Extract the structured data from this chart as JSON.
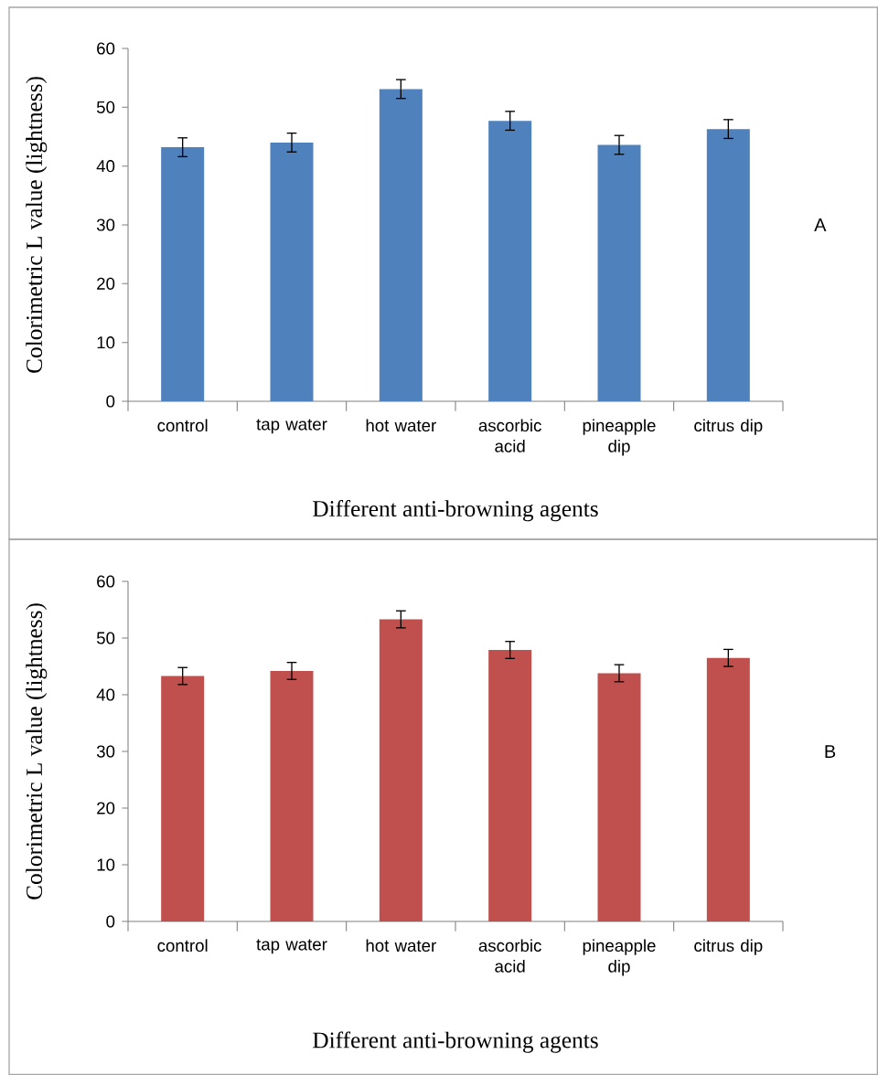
{
  "chart_data": [
    {
      "type": "bar",
      "categories": [
        "control",
        "tap water",
        "hot water",
        "ascorbic acid",
        "pineapple dip",
        "citrus dip"
      ],
      "values": [
        43.2,
        44.0,
        53.1,
        47.7,
        43.6,
        46.3
      ],
      "errors": [
        1.6,
        1.6,
        1.6,
        1.6,
        1.6,
        1.6
      ],
      "color": "#4f81bd",
      "ylim": [
        0,
        60
      ],
      "yticks": [
        0,
        10,
        20,
        30,
        40,
        50,
        60
      ],
      "xlabel": "Different anti-browning agents",
      "ylabel": "Colorimetric L value (lightness)",
      "annotations": [
        "A"
      ]
    },
    {
      "type": "bar",
      "categories": [
        "control",
        "tap water",
        "hot water",
        "ascorbic acid",
        "pineapple dip",
        "citrus dip"
      ],
      "values": [
        43.3,
        44.2,
        53.3,
        47.9,
        43.8,
        46.5
      ],
      "errors": [
        1.5,
        1.5,
        1.5,
        1.5,
        1.5,
        1.5
      ],
      "color": "#c0504d",
      "ylim": [
        0,
        60
      ],
      "yticks": [
        0,
        10,
        20,
        30,
        40,
        50,
        60
      ],
      "xlabel": "Different anti-browning agents",
      "ylabel": "Colorimetric L value (lightness)",
      "annotations": [
        "B"
      ]
    }
  ]
}
